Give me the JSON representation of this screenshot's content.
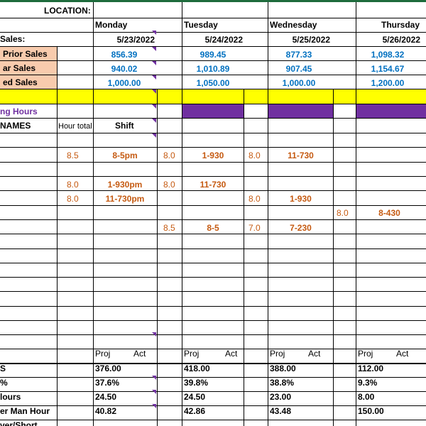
{
  "header": {
    "location_label": "LOCATION:",
    "sales_label": "Sales:"
  },
  "days": [
    {
      "name": "Monday",
      "date": "5/23/2022",
      "prior": "856.39",
      "lastyear": "940.02",
      "projected": "1,000.00"
    },
    {
      "name": "Tuesday",
      "date": "5/24/2022",
      "prior": "989.45",
      "lastyear": "1,010.89",
      "projected": "1,050.00"
    },
    {
      "name": "Wednesday",
      "date": "5/25/2022",
      "prior": "877.33",
      "lastyear": "907.45",
      "projected": "1,000.00"
    },
    {
      "name": "Thursday",
      "date": "5/26/2022",
      "prior": "1,098.32",
      "lastyear": "1,154.67",
      "projected": "1,200.00"
    }
  ],
  "row_labels": {
    "prior": "Prior Sales",
    "lastyear": "ar Sales",
    "projected": "ed Sales",
    "opening": "ng Hours",
    "names": "NAMES",
    "hour_total": "Hour total",
    "shift": "Shift"
  },
  "shifts": [
    {
      "h1": "8.5",
      "s1": "8-5pm",
      "h2": "8.0",
      "s2": "1-930",
      "h3": "8.0",
      "s3": "11-730",
      "h4": "",
      "s4": ""
    },
    {
      "h1": "8.0",
      "s1": "1-930pm",
      "h2": "8.0",
      "s2": "11-730",
      "h3": "",
      "s3": "",
      "h4": "",
      "s4": ""
    },
    {
      "h1": "8.0",
      "s1": "11-730pm",
      "h2": "",
      "s2": "",
      "h3": "8.0",
      "s3": "1-930",
      "h4": "",
      "s4": ""
    },
    {
      "h1": "",
      "s1": "",
      "h2": "",
      "s2": "",
      "h3": "",
      "s3": "",
      "h4": "8.0",
      "s4": "8-430"
    },
    {
      "h1": "",
      "s1": "",
      "h2": "8.5",
      "s2": "8-5",
      "h3": "7.0",
      "s3": "7-230",
      "h4": "",
      "s4": ""
    }
  ],
  "proj_label": "Proj",
  "act_label": "Act",
  "summary": [
    {
      "label": "S",
      "values": [
        "376.00",
        "418.00",
        "388.00",
        "112.00"
      ]
    },
    {
      "label": "%",
      "values": [
        "37.6%",
        "39.8%",
        "38.8%",
        "9.3%"
      ]
    },
    {
      "label": "lours",
      "values": [
        "24.50",
        "24.50",
        "23.00",
        "8.00"
      ]
    },
    {
      "label": "er Man Hour",
      "values": [
        "40.82",
        "42.86",
        "43.48",
        "150.00"
      ]
    },
    {
      "label": "ver/Short",
      "values": [
        "",
        "",
        "",
        ""
      ]
    }
  ],
  "colors": {
    "peach": "#f8cbad",
    "yellow": "#ffff00",
    "purple": "#7030a0",
    "blue_text": "#0070c0",
    "orange_text": "#c55a11",
    "excel_green": "#1e6b3c"
  }
}
